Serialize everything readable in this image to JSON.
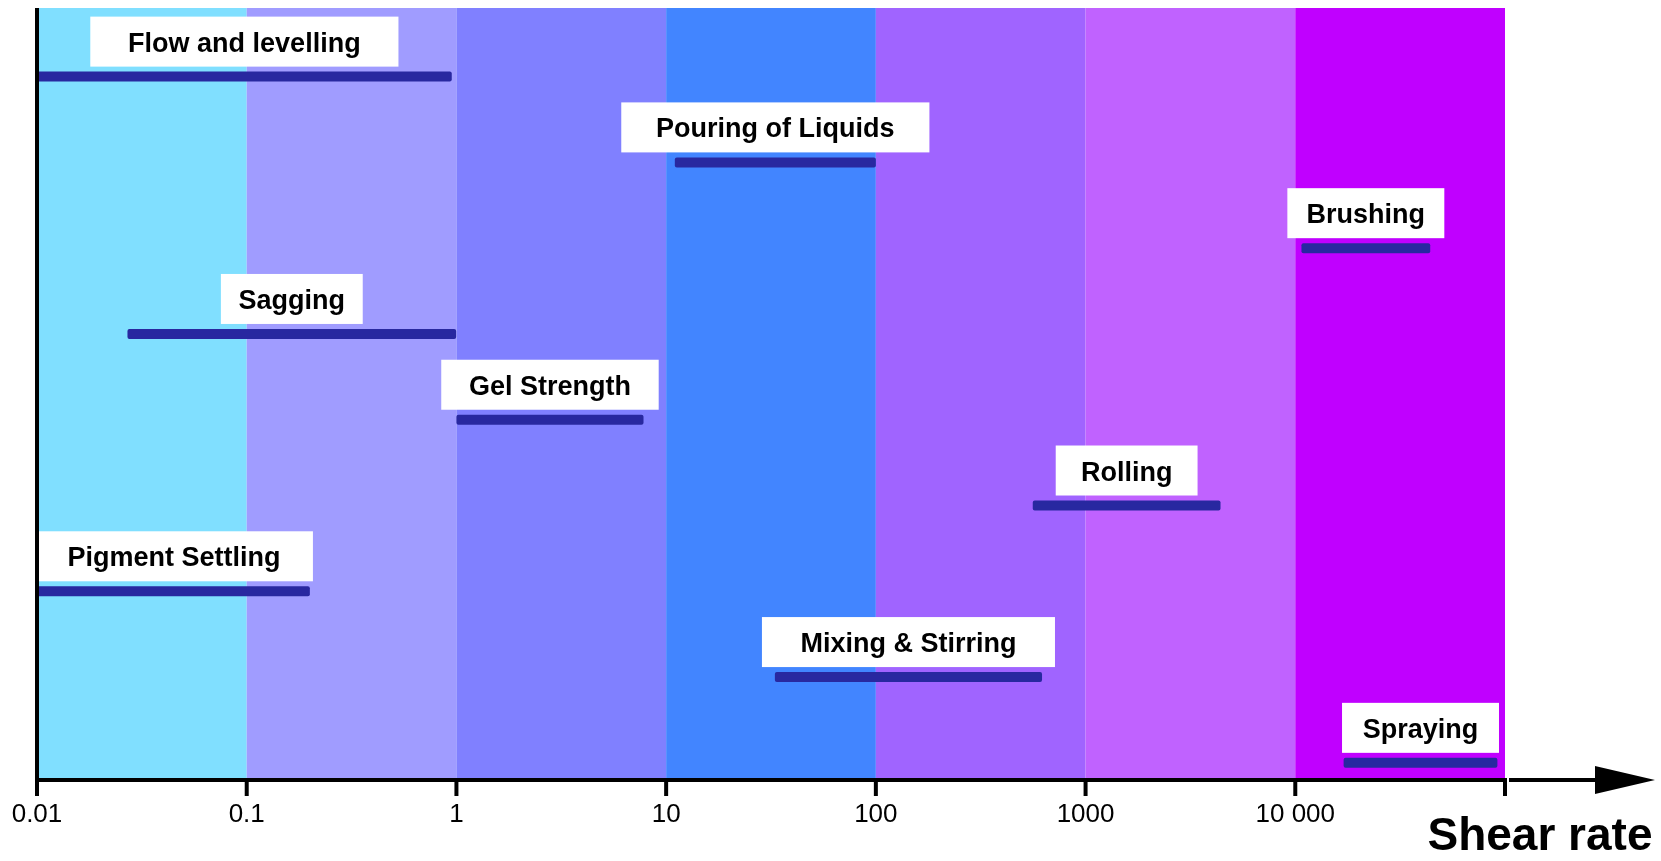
{
  "chart_data": {
    "type": "bar",
    "orientation": "horizontal",
    "log": "x",
    "xlabel": "Shear rate",
    "xlim": [
      0.01,
      100000
    ],
    "xticks": [
      0.01,
      0.1,
      1,
      10,
      100,
      1000,
      {
        "value": 10000,
        "label": "10 000"
      }
    ],
    "categories": [
      "Flow and levelling",
      "Pouring of Liquids",
      "Brushing",
      "Sagging",
      "Gel Strength",
      "Rolling",
      "Pigment Settling",
      "Mixing & Stirring",
      "Spraying"
    ],
    "base": [
      0.01,
      11,
      10700,
      0.027,
      1,
      560,
      0.01,
      33,
      17000
    ],
    "values": [
      0.94,
      89,
      33300,
      0.97,
      6.8,
      3840,
      0.19,
      587,
      75000
    ],
    "color": "#2828a0",
    "bands": [
      {
        "axis": "x",
        "from": 0.01,
        "to": 0.1,
        "color": "#80dfff"
      },
      {
        "axis": "x",
        "from": 0.1,
        "to": 1,
        "color": "#a09cff"
      },
      {
        "axis": "x",
        "from": 1,
        "to": 10,
        "color": "#8080ff"
      },
      {
        "axis": "x",
        "from": 10,
        "to": 100,
        "color": "#4285ff"
      },
      {
        "axis": "x",
        "from": 100,
        "to": 1000,
        "color": "#a064ff"
      },
      {
        "axis": "x",
        "from": 1000,
        "to": 10000,
        "color": "#c062ff"
      },
      {
        "axis": "x",
        "from": 10000,
        "to": 100000,
        "color": "#c000ff"
      }
    ]
  }
}
